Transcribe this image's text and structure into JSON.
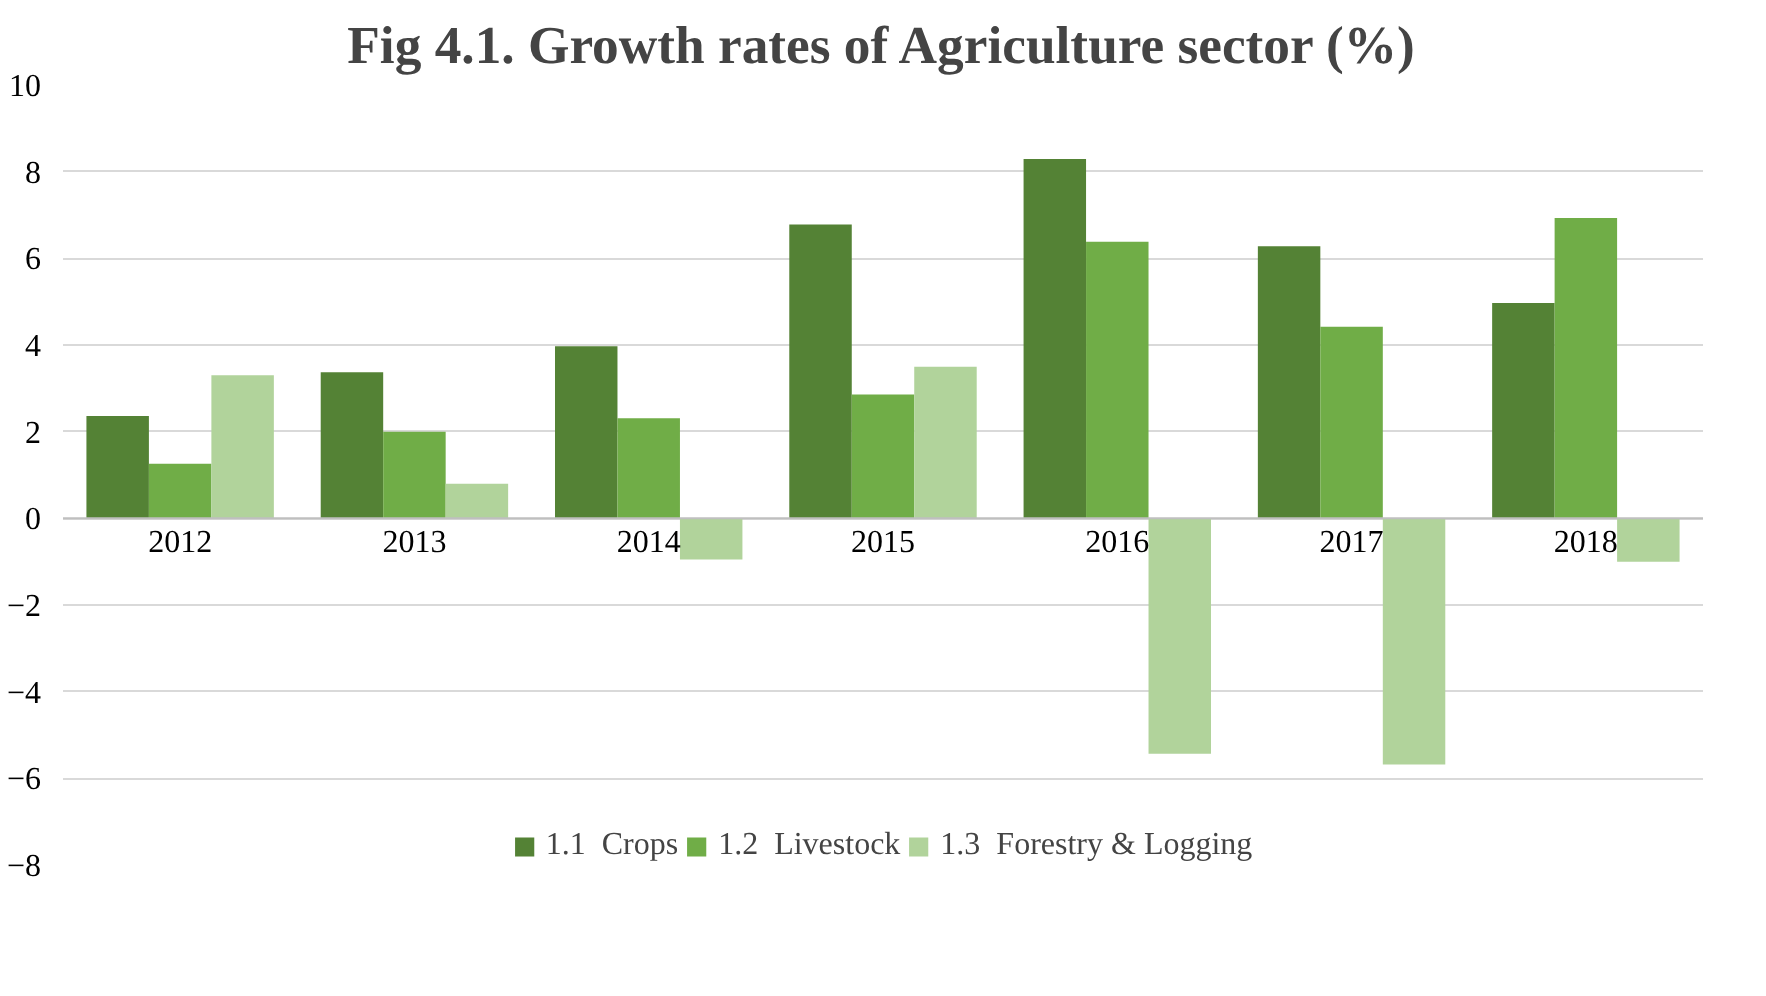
{
  "chart_data": {
    "type": "bar",
    "title": "Fig 4.1. Growth rates of Agriculture sector (%)",
    "categories": [
      "2012",
      "2013",
      "2014",
      "2015",
      "2016",
      "2017",
      "2018"
    ],
    "series": [
      {
        "name": "1.1  Crops",
        "color": "#548235",
        "values": [
          2.36,
          3.37,
          3.97,
          6.78,
          8.29,
          6.28,
          4.97
        ]
      },
      {
        "name": "1.2  Livestock",
        "color": "#70ad47",
        "values": [
          1.26,
          2.0,
          2.31,
          2.86,
          6.38,
          4.42,
          6.93
        ]
      },
      {
        "name": "1.3  Forestry & Logging",
        "color": "#b1d39b",
        "values": [
          3.3,
          0.8,
          -0.95,
          3.5,
          -5.43,
          -5.68,
          -1.0
        ]
      }
    ],
    "ylim": [
      -8,
      10
    ],
    "yticks": [
      -8,
      -6,
      -4,
      -2,
      0,
      2,
      4,
      6,
      8,
      10
    ],
    "grid": "y",
    "legend": "bottom"
  }
}
